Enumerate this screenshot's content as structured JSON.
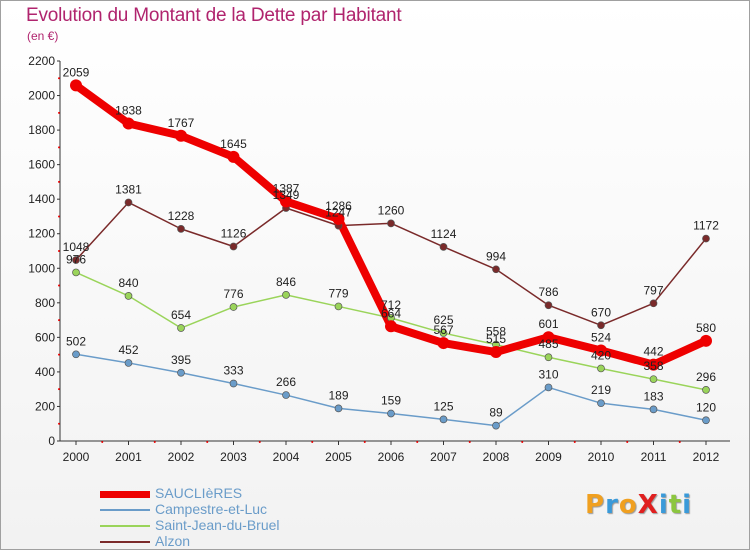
{
  "title": "Evolution du Montant de la Dette par Habitant",
  "subtitle": "(en €)",
  "logo": {
    "text": "ProXiti",
    "letters": [
      "P",
      "r",
      "o",
      "X",
      "i",
      "t",
      "i"
    ],
    "colors": [
      "#f0a020",
      "#3a9ad9",
      "#f0a020",
      "#e02020",
      "#3a9ad9",
      "#8cc63f",
      "#3a9ad9"
    ]
  },
  "chart_data": {
    "type": "line",
    "title": "Evolution du Montant de la Dette par Habitant",
    "subtitle": "(en €)",
    "x": [
      "2000",
      "2001",
      "2002",
      "2003",
      "2004",
      "2005",
      "2006",
      "2007",
      "2008",
      "2009",
      "2010",
      "2011",
      "2012"
    ],
    "ylim": [
      0,
      2200
    ],
    "yticks": [
      0,
      200,
      400,
      600,
      800,
      1000,
      1200,
      1400,
      1600,
      1800,
      2000,
      2200
    ],
    "grid": false,
    "legend_position": "bottom-left",
    "series": [
      {
        "name": "SAUCLIèRES",
        "color": "#ee0000",
        "width": 8,
        "values": [
          2059,
          1838,
          1767,
          1645,
          1387,
          1286,
          664,
          567,
          515,
          601,
          524,
          442,
          580
        ],
        "labels": [
          "2059",
          "1838",
          "1767",
          "1645",
          "1387",
          "1286",
          "664",
          "567",
          "515",
          "601",
          "524",
          "442",
          "580"
        ]
      },
      {
        "name": "Campestre-et-Luc",
        "color": "#6a9cc9",
        "width": 1.5,
        "values": [
          502,
          452,
          395,
          333,
          266,
          189,
          159,
          125,
          89,
          310,
          219,
          183,
          120
        ],
        "labels": [
          "502",
          "452",
          "395",
          "333",
          "266",
          "189",
          "159",
          "125",
          "89",
          "310",
          "219",
          "183",
          "120"
        ]
      },
      {
        "name": "Saint-Jean-du-Bruel",
        "color": "#9ad45a",
        "width": 1.5,
        "values": [
          976,
          840,
          654,
          776,
          846,
          779,
          712,
          625,
          558,
          485,
          420,
          358,
          296
        ],
        "labels": [
          "976",
          "840",
          "654",
          "776",
          "846",
          "779",
          "712",
          "625",
          "558",
          "485",
          "420",
          "358",
          "296"
        ]
      },
      {
        "name": "Alzon",
        "color": "#7a2a2a",
        "width": 1.5,
        "values": [
          1048,
          1381,
          1228,
          1126,
          1349,
          1247,
          1260,
          1124,
          994,
          786,
          670,
          797,
          1172
        ],
        "labels": [
          "1048",
          "1381",
          "1228",
          "1126",
          "1349",
          "1247",
          "1260",
          "1124",
          "994",
          "786",
          "670",
          "797",
          "1172"
        ]
      }
    ]
  }
}
